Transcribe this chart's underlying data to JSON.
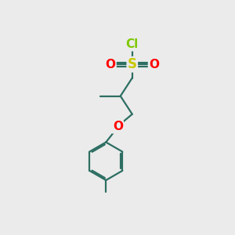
{
  "background_color": "#ebebeb",
  "bond_color": "#2d6e62",
  "atom_colors": {
    "Cl": "#7ec800",
    "S": "#c8c800",
    "O": "#ff0000",
    "C": "#2d6e62"
  },
  "figsize": [
    3.0,
    3.0
  ],
  "dpi": 100
}
